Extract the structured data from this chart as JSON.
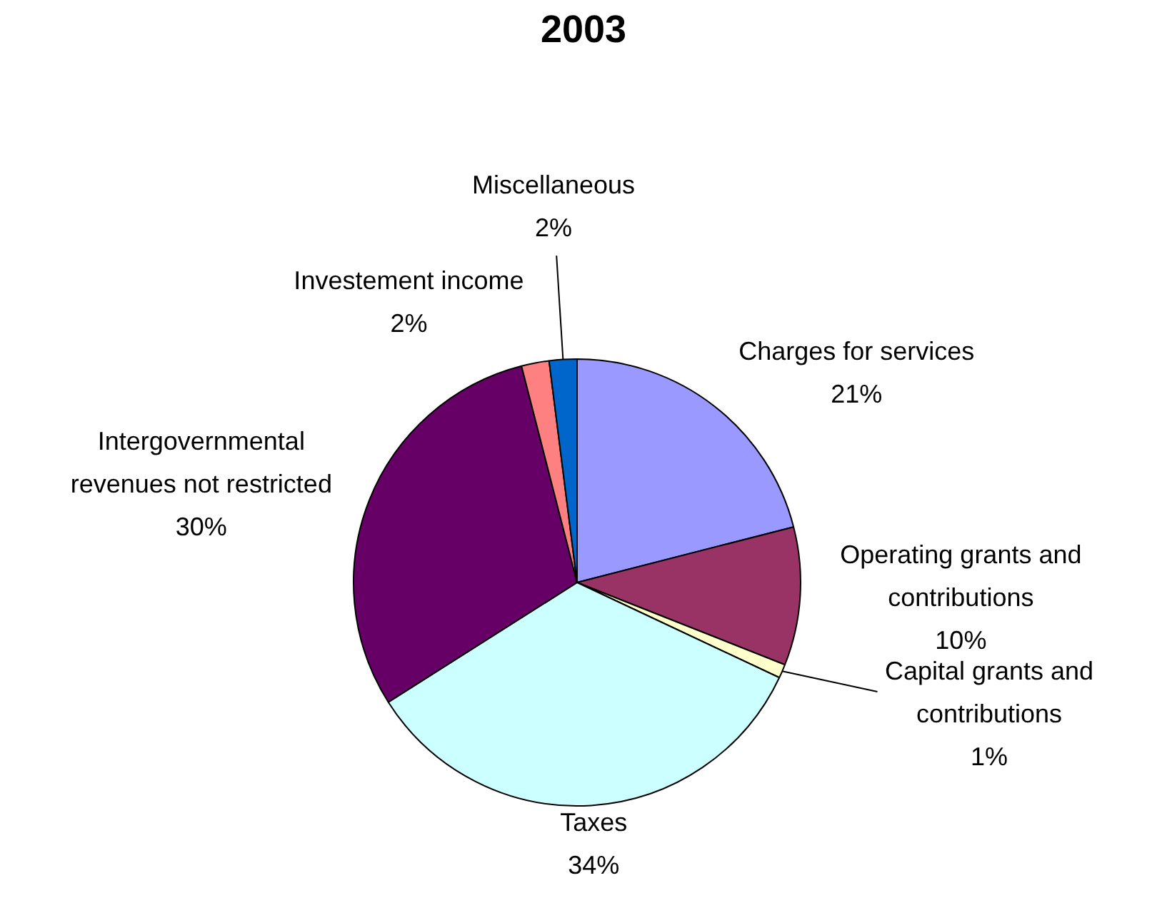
{
  "chart_data": {
    "type": "pie",
    "title": "2003",
    "categories": [
      "Charges for services",
      "Operating grants and contributions",
      "Capital grants and contributions",
      "Taxes",
      "Intergovernmental revenues not restricted",
      "Investement income",
      "Miscellaneous"
    ],
    "values": [
      21,
      10,
      1,
      34,
      30,
      2,
      2
    ],
    "value_labels": [
      "21%",
      "10%",
      "1%",
      "34%",
      "30%",
      "2%",
      "2%"
    ],
    "colors": [
      "#9999ff",
      "#993366",
      "#ffffcc",
      "#ccffff",
      "#660066",
      "#ff8080",
      "#0066cc"
    ],
    "legend": false
  }
}
